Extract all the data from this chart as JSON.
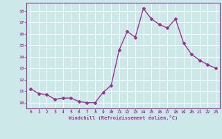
{
  "x": [
    0,
    1,
    2,
    3,
    4,
    5,
    6,
    7,
    8,
    9,
    10,
    11,
    12,
    13,
    14,
    15,
    16,
    17,
    18,
    19,
    20,
    21,
    22,
    23
  ],
  "y": [
    11.2,
    10.8,
    10.7,
    10.3,
    10.4,
    10.4,
    10.1,
    10.0,
    10.0,
    10.9,
    11.5,
    14.6,
    16.2,
    15.7,
    18.2,
    17.3,
    16.8,
    16.5,
    17.3,
    15.2,
    14.2,
    13.7,
    13.3,
    13.0
  ],
  "line_color": "#993399",
  "marker": "D",
  "marker_size": 2.0,
  "bg_color": "#cce8e8",
  "grid_color": "#ffffff",
  "xlabel": "Windchill (Refroidissement éolien,°C)",
  "xlabel_color": "#993399",
  "tick_color": "#993399",
  "ylim": [
    9.5,
    18.7
  ],
  "xlim": [
    -0.5,
    23.5
  ],
  "yticks": [
    10,
    11,
    12,
    13,
    14,
    15,
    16,
    17,
    18
  ],
  "xticks": [
    0,
    1,
    2,
    3,
    4,
    5,
    6,
    7,
    8,
    9,
    10,
    11,
    12,
    13,
    14,
    15,
    16,
    17,
    18,
    19,
    20,
    21,
    22,
    23
  ],
  "tick_fontsize": 4.5,
  "xlabel_fontsize": 5.0,
  "linewidth": 1.0
}
